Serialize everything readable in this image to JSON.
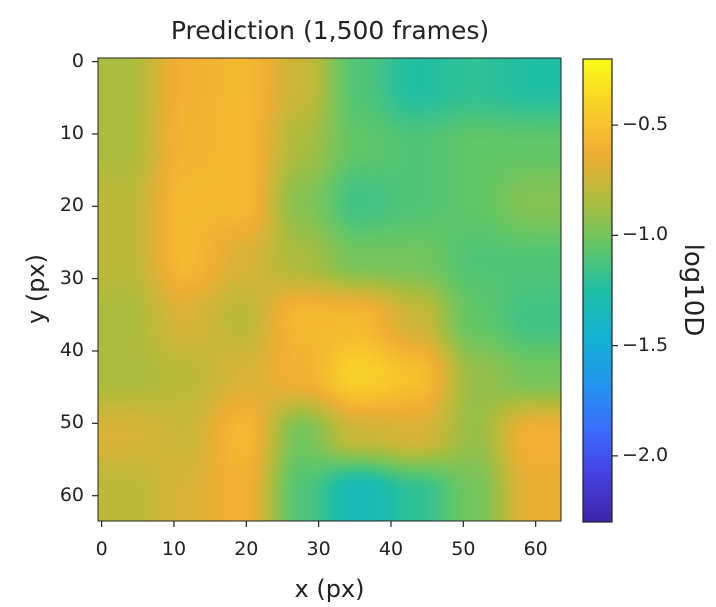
{
  "chart_data": {
    "type": "heatmap",
    "title": "Prediction (1,500 frames)",
    "xlabel": "x (px)",
    "ylabel": "y (px)",
    "colorbar_label": "log10D",
    "xlim": [
      0,
      64
    ],
    "ylim": [
      0,
      64
    ],
    "y_direction": "top-to-bottom",
    "xticks": [
      0,
      10,
      20,
      30,
      40,
      50,
      60
    ],
    "yticks": [
      0,
      10,
      20,
      30,
      40,
      50,
      60
    ],
    "colorbar_range": [
      -2.3,
      -0.2
    ],
    "colorbar_ticks": [
      -0.5,
      -1.0,
      -1.5,
      -2.0
    ],
    "colorbar_tick_labels": [
      "−0.5",
      "−1.0",
      "−1.5",
      "−2.0"
    ],
    "colormap": "parula",
    "grid": false,
    "grid_size": [
      8,
      8
    ],
    "values": [
      [
        -0.85,
        -0.6,
        -0.55,
        -0.75,
        -1.1,
        -1.25,
        -1.2,
        -1.25
      ],
      [
        -0.85,
        -0.58,
        -0.55,
        -0.85,
        -1.05,
        -1.1,
        -1.05,
        -1.05
      ],
      [
        -0.8,
        -0.55,
        -0.55,
        -0.95,
        -1.15,
        -1.1,
        -1.05,
        -0.95
      ],
      [
        -0.8,
        -0.55,
        -0.7,
        -0.85,
        -1.0,
        -1.0,
        -1.1,
        -1.1
      ],
      [
        -0.85,
        -0.7,
        -0.8,
        -0.55,
        -0.55,
        -0.75,
        -1.05,
        -1.15
      ],
      [
        -0.85,
        -0.8,
        -0.7,
        -0.6,
        -0.4,
        -0.5,
        -0.9,
        -1.0
      ],
      [
        -0.7,
        -0.75,
        -0.55,
        -1.0,
        -0.75,
        -0.7,
        -0.9,
        -0.6
      ],
      [
        -0.8,
        -0.7,
        -0.6,
        -1.1,
        -1.35,
        -1.2,
        -1.0,
        -0.65
      ]
    ]
  }
}
